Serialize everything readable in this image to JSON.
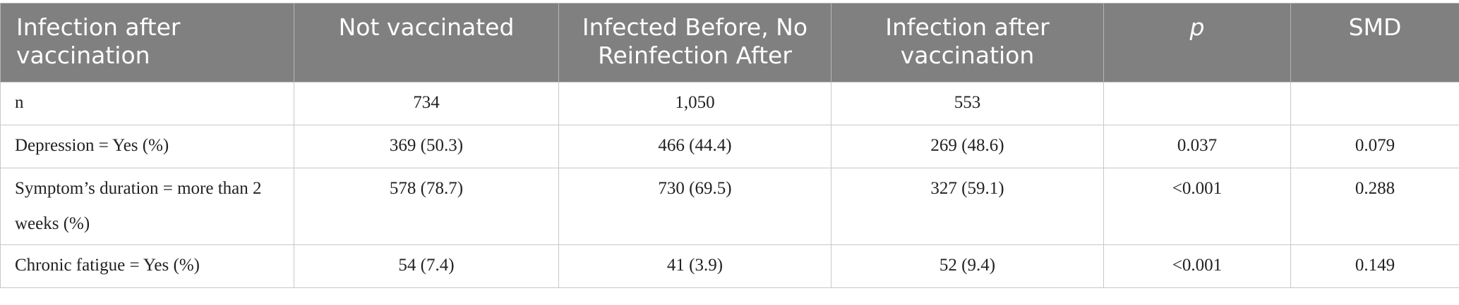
{
  "table": {
    "header": [
      "Infection after vaccination",
      "Not vaccinated",
      "Infected Before, No Reinfection After",
      "Infection after vaccination",
      "p",
      "SMD"
    ],
    "rows": [
      [
        "n",
        "734",
        "1,050",
        "553"
      ],
      [
        "Depression = Yes (%)",
        "369 (50.3)",
        "466 (44.4)",
        "269 (48.6)",
        "0.037",
        "0.079"
      ],
      [
        "Symptom’s duration = more than 2 weeks (%)",
        "578 (78.7)",
        "730 (69.5)",
        "327 (59.1)",
        "<0.001",
        "0.288"
      ],
      [
        "Chronic fatigue = Yes (%)",
        "54 (7.4)",
        "41 (3.9)",
        "52 (9.4)",
        "<0.001",
        "0.149"
      ]
    ]
  }
}
